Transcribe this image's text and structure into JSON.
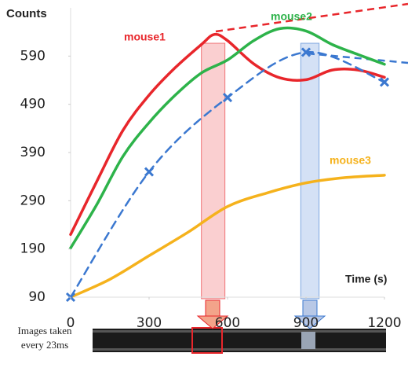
{
  "chart_data": {
    "type": "line",
    "y_label": "Counts",
    "x_label": "Time (s)",
    "caption": [
      "Images taken",
      "every 23ms"
    ],
    "xlim": [
      0,
      1200
    ],
    "xticks": [
      0,
      300,
      600,
      900,
      1200
    ],
    "ylim": [
      90,
      690
    ],
    "yticks": [
      90,
      190,
      290,
      390,
      490,
      590
    ],
    "series": [
      {
        "name": "mouse1",
        "color": "#e8262b",
        "dashed": false,
        "markers": false,
        "x": [
          0,
          100,
          200,
          300,
          400,
          500,
          550,
          600,
          700,
          800,
          900,
          1000,
          1100,
          1200
        ],
        "values": [
          220,
          330,
          436,
          509,
          566,
          614,
          635,
          622,
          574,
          545,
          541,
          561,
          561,
          546
        ]
      },
      {
        "name": "mouse2",
        "color": "#2db34a",
        "dashed": false,
        "markers": false,
        "x": [
          0,
          100,
          200,
          300,
          400,
          500,
          600,
          700,
          800,
          900,
          1000,
          1100,
          1200
        ],
        "values": [
          192,
          282,
          382,
          452,
          509,
          555,
          582,
          622,
          647,
          642,
          614,
          593,
          573
        ]
      },
      {
        "name": "mouse3",
        "color": "#f5b21c",
        "dashed": false,
        "markers": false,
        "x": [
          0,
          150,
          300,
          450,
          600,
          750,
          900,
          1050,
          1200
        ],
        "values": [
          90,
          127,
          176,
          225,
          278,
          306,
          327,
          338,
          343
        ]
      },
      {
        "name": null,
        "color": "#3b78d0",
        "dashed": true,
        "markers": true,
        "x": [
          0,
          300,
          600,
          900,
          1200
        ],
        "values": [
          90,
          350,
          504,
          598,
          536
        ]
      }
    ],
    "highlights": [
      {
        "x": [
          500,
          590
        ],
        "color": "#e8262b"
      },
      {
        "x": [
          880,
          950
        ],
        "color": "#3b78d0"
      }
    ]
  }
}
